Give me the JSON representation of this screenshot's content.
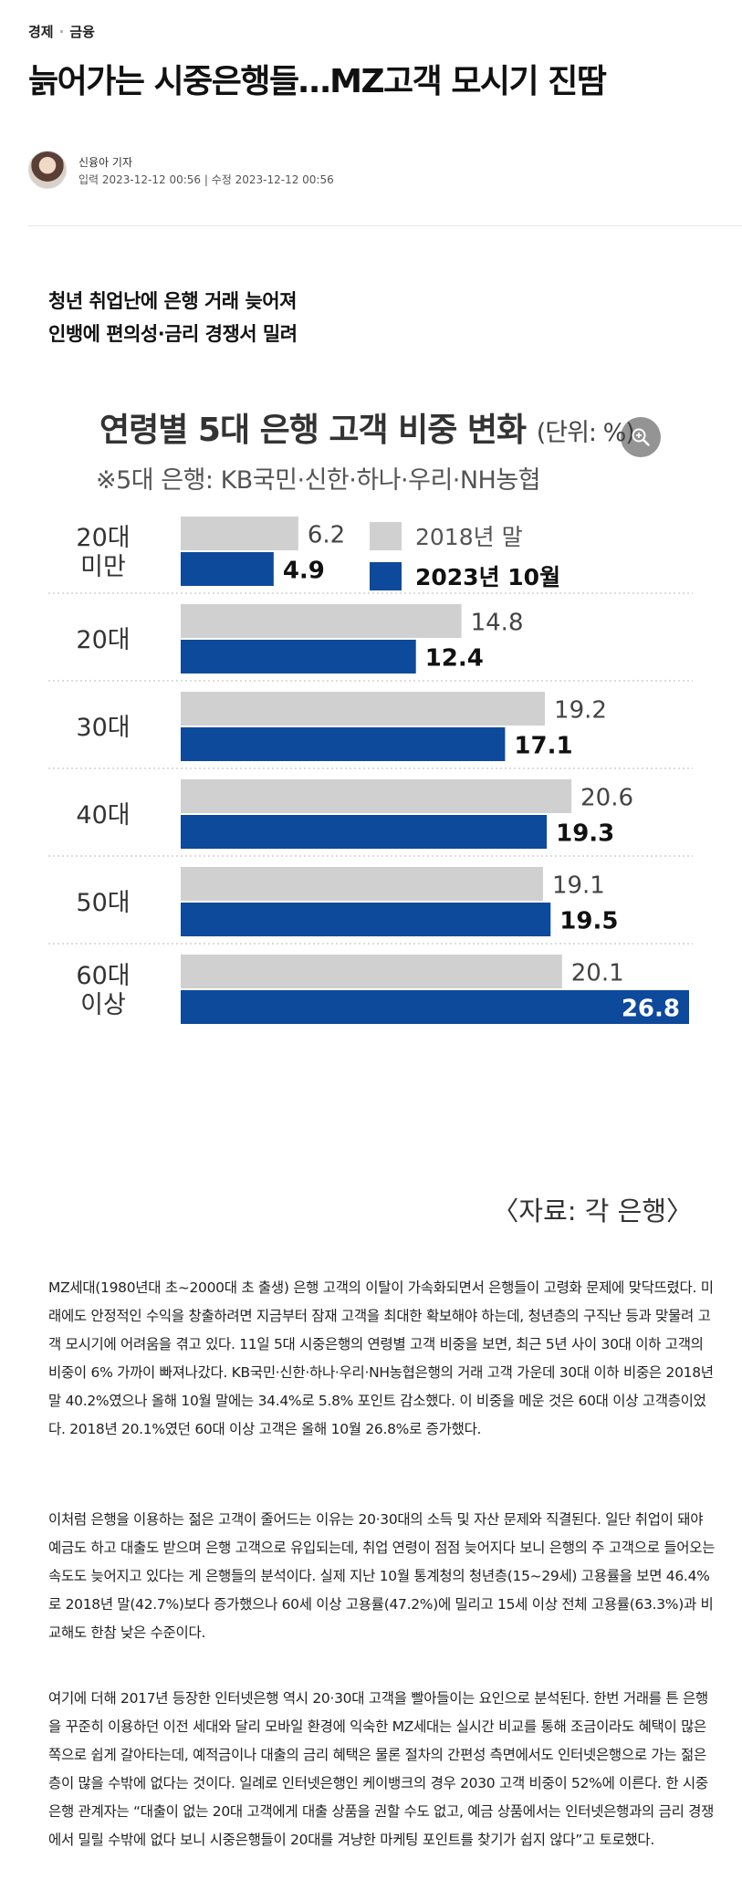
{
  "article": {
    "category": "경제",
    "subcategory": "금융",
    "headline": "늙어가는 시중은행들…MZ고객 모시기 진땀",
    "reporter": "신융아 기자",
    "dates": "입력 2023-12-12 00:56 | 수정 2023-12-12 00:56",
    "subhead_line1": "청년 취업난에 은행 거래 늦어져",
    "subhead_line2": "인뱅에 편의성·금리 경쟁서 밀려",
    "paragraphs": [
      "MZ세대(1980년대 초~2000대 초 출생) 은행 고객의 이탈이 가속화되면서 은행들이 고령화 문제에 맞닥뜨렸다. 미래에도 안정적인 수익을 창출하려면 지금부터 잠재 고객을 최대한 확보해야 하는데, 청년층의 구직난 등과 맞물려 고객 모시기에 어려움을 겪고 있다. 11일 5대 시중은행의 연령별 고객 비중을 보면, 최근 5년 사이 30대 이하 고객의 비중이 6% 가까이 빠져나갔다. KB국민·신한·하나·우리·NH농협은행의 거래 고객 가운데 30대 이하 비중은 2018년 말 40.2%였으나 올해 10월 말에는 34.4%로 5.8% 포인트 감소했다. 이 비중을 메운 것은 60대 이상 고객층이었다. 2018년 20.1%였던 60대 이상 고객은 올해 10월 26.8%로 증가했다.",
      "이처럼 은행을 이용하는 젊은 고객이 줄어드는 이유는 20·30대의 소득 및 자산 문제와 직결된다. 일단 취업이 돼야 예금도 하고 대출도 받으며 은행 고객으로 유입되는데, 취업 연령이 점점 늦어지다 보니 은행의 주 고객으로 들어오는 속도도 늦어지고 있다는 게 은행들의 분석이다. 실제 지난 10월 통계청의 청년층(15~29세) 고용률을 보면 46.4%로 2018년 말(42.7%)보다 증가했으나 60세 이상 고용률(47.2%)에 밀리고 15세 이상 전체 고용률(63.3%)과 비교해도 한참 낮은 수준이다.",
      "여기에 더해 2017년 등장한 인터넷은행 역시 20·30대 고객을 빨아들이는 요인으로 분석된다. 한번 거래를 튼 은행을 꾸준히 이용하던 이전 세대와 달리 모바일 환경에 익숙한 MZ세대는 실시간 비교를 통해 조금이라도 혜택이 많은 쪽으로 쉽게 갈아타는데, 예적금이나 대출의 금리 혜택은 물론 절차의 간편성 측면에서도 인터넷은행으로 가는 젊은층이 많을 수밖에 없다는 것이다. 일례로 인터넷은행인 케이뱅크의 경우 2030 고객 비중이 52%에 이른다. 한 시중은행 관계자는 “대출이 없는 20대 고객에게 대출 상품을 권할 수도 없고, 예금 상품에서는 인터넷은행과의 금리 경쟁에서 밀릴 수밖에 없다 보니 시중은행들이 20대를 겨냥한 마케팅 포인트를 찾기가 쉽지 않다”고 토로했다."
    ]
  },
  "figure": {
    "title": "연령별 5대 은행 고객 비중 변화",
    "unit": "(단위: %)",
    "note": "※5대 은행: KB국민·신한·하나·우리·NH농협",
    "source": "〈자료: 각 은행〉",
    "zoom_icon": "zoom-in-icon"
  },
  "chart_data": {
    "type": "bar",
    "orientation": "horizontal",
    "title": "연령별 5대 은행 고객 비중 변화",
    "unit": "%",
    "categories": [
      "20대\n미만",
      "20대",
      "30대",
      "40대",
      "50대",
      "60대\n이상"
    ],
    "series": [
      {
        "name": "2018년 말",
        "color": "#d0d0d0",
        "values": [
          6.2,
          14.8,
          19.2,
          20.6,
          19.1,
          20.1
        ]
      },
      {
        "name": "2023년 10월",
        "color": "#0d4a9c",
        "values": [
          4.9,
          12.4,
          17.1,
          19.3,
          19.5,
          26.8
        ]
      }
    ],
    "xlim": [
      0,
      26.8
    ],
    "legend": "top-right",
    "grid": false
  }
}
